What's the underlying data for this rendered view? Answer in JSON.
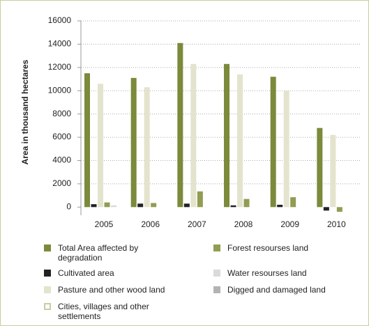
{
  "chart_data": {
    "type": "bar",
    "y_label": "Area in thousand hectares",
    "categories": [
      "2005",
      "2006",
      "2007",
      "2008",
      "2009",
      "2010"
    ],
    "series": [
      {
        "name": "Total Area affected by degradation",
        "color": "#7b8a3b",
        "values": [
          11500,
          11100,
          14100,
          12300,
          11200,
          6800
        ]
      },
      {
        "name": "Cultivated area",
        "color": "#222222",
        "values": [
          250,
          300,
          300,
          150,
          200,
          -300
        ]
      },
      {
        "name": "Pasture and other wood land",
        "color": "#e4e3cd",
        "values": [
          10600,
          10300,
          12300,
          11400,
          10000,
          6200
        ]
      },
      {
        "name": "Forest resourses land",
        "color": "#929c52",
        "values": [
          400,
          350,
          1350,
          700,
          850,
          -400
        ]
      },
      {
        "name": "Water resourses land",
        "color": "#dadada",
        "values": [
          150,
          0,
          0,
          0,
          0,
          0
        ]
      },
      {
        "name": "Digged and damaged land",
        "color": "#b3b3b3",
        "values": [
          0,
          0,
          0,
          0,
          0,
          0
        ]
      },
      {
        "name": "Cities, villages and other settlements",
        "color": "#ffffff",
        "values": [
          0,
          0,
          0,
          0,
          0,
          0
        ]
      }
    ],
    "ylim": [
      -700,
      16000
    ],
    "yticks": [
      0,
      2000,
      4000,
      6000,
      8000,
      10000,
      12000,
      14000,
      16000
    ],
    "grid": true
  }
}
